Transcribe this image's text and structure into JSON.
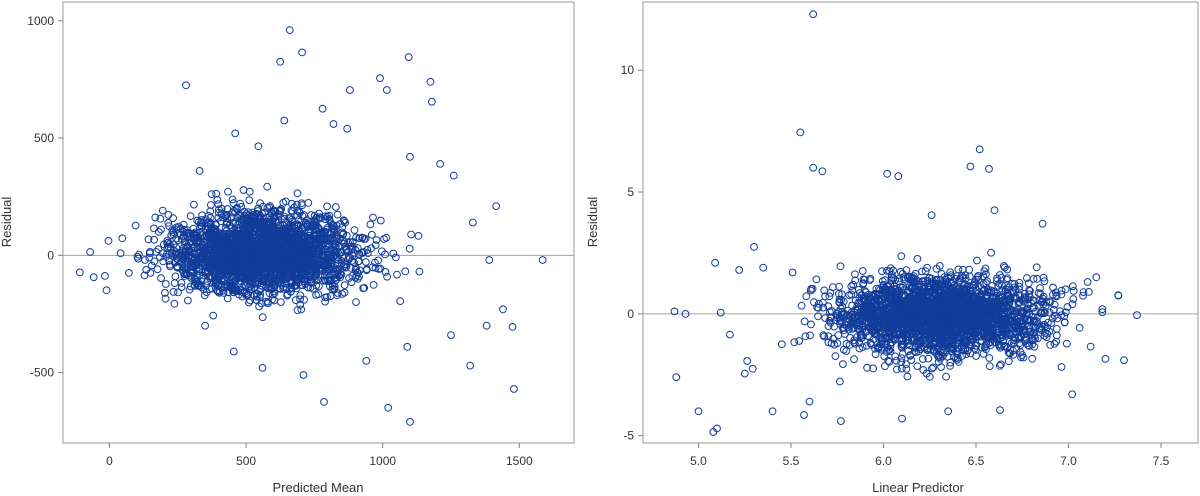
{
  "chart_data": [
    {
      "type": "scatter",
      "title": "",
      "xlabel": "Predicted Mean",
      "ylabel": "Residual",
      "xlim": [
        -170,
        1700
      ],
      "ylim": [
        -800,
        1080
      ],
      "xticks": [
        0,
        500,
        1000,
        1500
      ],
      "yticks": [
        -500,
        0,
        500,
        1000
      ],
      "reference_line_y": 0,
      "marker": "open-circle",
      "marker_color": "#123c9a",
      "grid": false,
      "legend": "none",
      "series": [
        {
          "points": [
            [
              280,
              725
            ],
            [
              660,
              960
            ],
            [
              625,
              825
            ],
            [
              705,
              865
            ],
            [
              1095,
              845
            ],
            [
              990,
              755
            ],
            [
              1175,
              740
            ],
            [
              1180,
              655
            ],
            [
              780,
              625
            ],
            [
              640,
              575
            ],
            [
              880,
              705
            ],
            [
              1015,
              705
            ],
            [
              545,
              465
            ],
            [
              460,
              520
            ],
            [
              1415,
              210
            ],
            [
              1585,
              -20
            ],
            [
              1480,
              -570
            ],
            [
              1100,
              -710
            ],
            [
              1020,
              -650
            ],
            [
              785,
              -625
            ],
            [
              710,
              -510
            ],
            [
              1440,
              -230
            ],
            [
              1380,
              -300
            ],
            [
              1475,
              -305
            ],
            [
              1320,
              -470
            ],
            [
              1250,
              -340
            ],
            [
              1090,
              -390
            ],
            [
              940,
              -450
            ],
            [
              560,
              -480
            ],
            [
              455,
              -410
            ],
            [
              130,
              -20
            ],
            [
              1100,
              420
            ],
            [
              1210,
              390
            ],
            [
              1260,
              340
            ],
            [
              1330,
              140
            ],
            [
              1390,
              -20
            ],
            [
              330,
              360
            ],
            [
              350,
              -300
            ],
            [
              820,
              560
            ],
            [
              870,
              540
            ]
          ]
        }
      ],
      "density_cloud": {
        "center": [
          560,
          10
        ],
        "spread_x": 170,
        "spread_y": 85,
        "count": 2600
      }
    },
    {
      "type": "scatter",
      "title": "",
      "xlabel": "Linear Predictor",
      "ylabel": "Residual",
      "xlim": [
        4.7,
        7.7
      ],
      "ylim": [
        -5.3,
        12.8
      ],
      "xticks": [
        5.0,
        5.5,
        6.0,
        6.5,
        7.0,
        7.5
      ],
      "yticks": [
        -5,
        0,
        5,
        10
      ],
      "reference_line_y": 0,
      "marker": "open-circle",
      "marker_color": "#123c9a",
      "grid": false,
      "legend": "none",
      "series": [
        {
          "points": [
            [
              5.62,
              12.3
            ],
            [
              5.55,
              7.45
            ],
            [
              6.52,
              6.75
            ],
            [
              6.47,
              6.05
            ],
            [
              6.57,
              5.95
            ],
            [
              5.62,
              6.0
            ],
            [
              5.67,
              5.85
            ],
            [
              6.02,
              5.75
            ],
            [
              6.08,
              5.65
            ],
            [
              4.87,
              0.1
            ],
            [
              4.93,
              0.0
            ],
            [
              4.88,
              -2.6
            ],
            [
              5.0,
              -4.0
            ],
            [
              5.08,
              -4.85
            ],
            [
              5.1,
              -4.7
            ],
            [
              5.09,
              2.1
            ],
            [
              5.12,
              0.05
            ],
            [
              5.25,
              -2.45
            ],
            [
              5.3,
              2.75
            ],
            [
              5.4,
              -4.0
            ],
            [
              5.57,
              -4.15
            ],
            [
              5.77,
              -4.4
            ],
            [
              6.1,
              -4.3
            ],
            [
              6.35,
              -4.0
            ],
            [
              6.63,
              -3.95
            ],
            [
              7.02,
              -3.3
            ],
            [
              7.2,
              -1.85
            ],
            [
              7.3,
              -1.9
            ],
            [
              7.37,
              -0.05
            ],
            [
              7.27,
              0.75
            ],
            [
              7.15,
              1.5
            ],
            [
              5.17,
              -0.85
            ],
            [
              5.22,
              1.8
            ],
            [
              5.35,
              1.9
            ],
            [
              5.45,
              -1.25
            ],
            [
              5.6,
              -3.6
            ],
            [
              6.6,
              4.25
            ],
            [
              6.26,
              4.05
            ],
            [
              6.86,
              3.7
            ],
            [
              7.11,
              0.9
            ]
          ]
        }
      ],
      "density_cloud": {
        "center": [
          6.3,
          -0.05
        ],
        "spread_x": 0.28,
        "spread_y": 0.78,
        "count": 2600
      }
    }
  ]
}
